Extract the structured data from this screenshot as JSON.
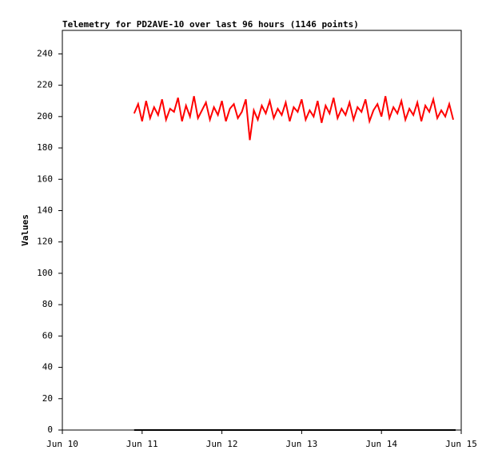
{
  "chart_data": {
    "type": "line",
    "title": "Telemetry for PD2AVE-10 over last 96 hours (1146 points)",
    "y_label": "Values",
    "xlim": [
      10,
      15
    ],
    "xticks": [
      {
        "value": 10,
        "label": "Jun 10"
      },
      {
        "value": 11,
        "label": "Jun 11"
      },
      {
        "value": 12,
        "label": "Jun 12"
      },
      {
        "value": 13,
        "label": "Jun 13"
      },
      {
        "value": 14,
        "label": "Jun 14"
      },
      {
        "value": 15,
        "label": "Jun 15"
      }
    ],
    "ylim": [
      0,
      255
    ],
    "yticks": [
      0,
      20,
      40,
      60,
      80,
      100,
      120,
      140,
      160,
      180,
      200,
      220,
      240
    ],
    "series": [
      {
        "color": "#ff0000",
        "x": [
          10.9,
          10.95,
          11,
          11.05,
          11.1,
          11.15,
          11.2,
          11.25,
          11.3,
          11.35,
          11.4,
          11.45,
          11.5,
          11.55,
          11.6,
          11.65,
          11.7,
          11.75,
          11.8,
          11.85,
          11.9,
          11.95,
          12,
          12.05,
          12.1,
          12.15,
          12.2,
          12.25,
          12.3,
          12.35,
          12.4,
          12.45,
          12.5,
          12.55,
          12.6,
          12.65,
          12.7,
          12.75,
          12.8,
          12.85,
          12.9,
          12.95,
          13,
          13.05,
          13.1,
          13.15,
          13.2,
          13.25,
          13.3,
          13.35,
          13.4,
          13.45,
          13.5,
          13.55,
          13.6,
          13.65,
          13.7,
          13.75,
          13.8,
          13.85,
          13.9,
          13.95,
          14,
          14.05,
          14.1,
          14.15,
          14.2,
          14.25,
          14.3,
          14.35,
          14.4,
          14.45,
          14.5,
          14.55,
          14.6,
          14.65,
          14.7,
          14.75,
          14.8,
          14.85,
          14.9
        ],
        "values": [
          202,
          208,
          197,
          210,
          199,
          206,
          201,
          211,
          198,
          205,
          203,
          212,
          197,
          207,
          200,
          213,
          199,
          204,
          209,
          198,
          206,
          201,
          210,
          197,
          205,
          208,
          199,
          203,
          211,
          185,
          204,
          198,
          207,
          202,
          210,
          199,
          205,
          201,
          209,
          197,
          206,
          203,
          211,
          198,
          204,
          200,
          210,
          196,
          207,
          202,
          212,
          199,
          205,
          201,
          209,
          198,
          206,
          203,
          211,
          197,
          204,
          208,
          200,
          213,
          199,
          206,
          202,
          210,
          198,
          205,
          201,
          209,
          197,
          207,
          203,
          211,
          199,
          204,
          200,
          208,
          198
        ]
      },
      {
        "color": "#000000",
        "x": [
          10.9,
          14.93
        ],
        "values": [
          0,
          0
        ]
      }
    ]
  }
}
